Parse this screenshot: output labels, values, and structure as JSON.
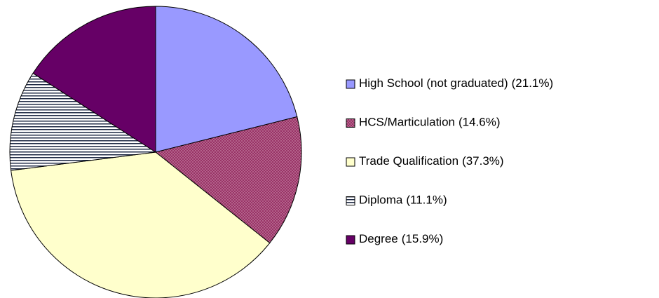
{
  "chart_data": {
    "type": "pie",
    "categories": [
      "High School (not graduated)",
      "HCS/Marticulation",
      "Trade Qualification",
      "Diploma",
      "Degree"
    ],
    "values": [
      21.1,
      14.6,
      37.3,
      11.1,
      15.9
    ],
    "value_labels": [
      "(21.1%)",
      "(14.6%)",
      "(37.3%)",
      "(11.1%)",
      "(15.9%)"
    ],
    "colors": [
      "#9999ff",
      "#993366",
      "#ffffcc",
      "#ffffff",
      "#660066"
    ],
    "patterns": [
      null,
      "dots",
      null,
      "horizontal-lines",
      null
    ],
    "legend": "right"
  }
}
